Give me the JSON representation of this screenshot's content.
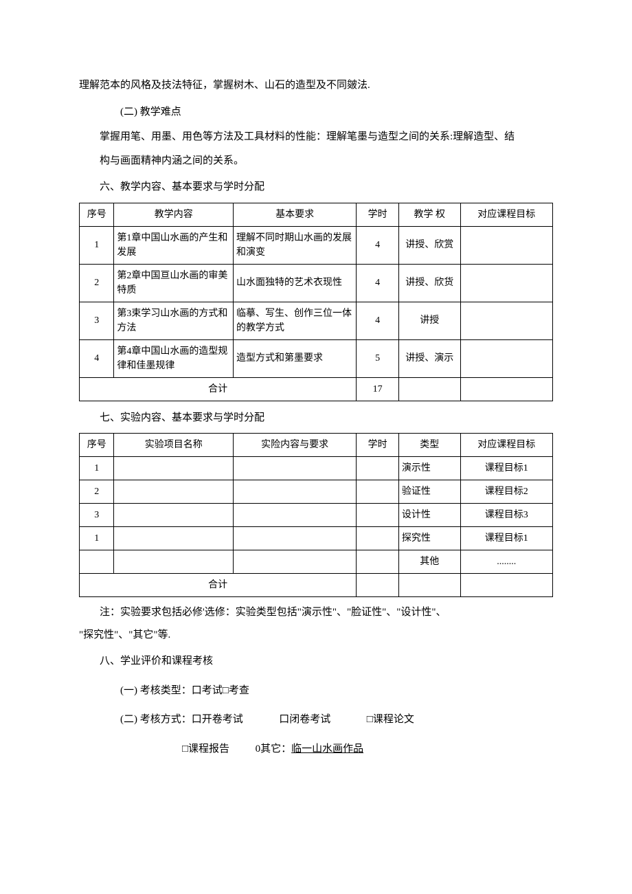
{
  "intro": {
    "line1": "理解范本的风格及技法特征，掌握树木、山石的造型及不同皴法.",
    "sub1": "(二) 教学难点",
    "line2": "掌握用笔、用墨、用色等方法及工具材料的性能：理解笔墨与造型之间的关系:理解造型、结",
    "line3": "构与画面精神内涵之间的关系。"
  },
  "section6": {
    "heading": "六、教学内容、基本要求与学时分配",
    "table": {
      "headers": [
        "序号",
        "教学内容",
        "基本要求",
        "学时",
        "教学\n权",
        "对应课程目标"
      ],
      "rows": [
        {
          "seq": "1",
          "content": "第1章中国山水画的产生和发展",
          "req": "理解不同时期山水画的发展和演变",
          "hours": "4",
          "method": "讲授、欣赏",
          "target": ""
        },
        {
          "seq": "2",
          "content": "第2章中国亘山水画的审美特质",
          "req": "山水面独特的艺术衣现性",
          "hours": "4",
          "method": "讲授、欣货",
          "target": ""
        },
        {
          "seq": "3",
          "content": "第3束学习山水画的方式和方法",
          "req": "临摹、写生、创作三位一体的教学方式",
          "hours": "4",
          "method": "讲授",
          "target": ""
        },
        {
          "seq": "4",
          "content": "第4章中国山水画的造型规律和佳墨规律",
          "req": "造型方式和第墨要求",
          "hours": "5",
          "method": "讲授、演示",
          "target": ""
        }
      ],
      "total_label": "合计",
      "total_hours": "17"
    }
  },
  "section7": {
    "heading": "七、实验内容、基本要求与学时分配",
    "table": {
      "headers": [
        "序号",
        "实验项目名称",
        "实险内容与要求",
        "学时",
        "类型",
        "对应课程目标"
      ],
      "rows": [
        {
          "seq": "1",
          "name": "",
          "req": "",
          "hours": "",
          "type": "演示性",
          "target": "课程目标1"
        },
        {
          "seq": "2",
          "name": "",
          "req": "",
          "hours": "",
          "type": "验证性",
          "target": "课程目标2"
        },
        {
          "seq": "3",
          "name": "",
          "req": "",
          "hours": "",
          "type": "设计性",
          "target": "课程目标3"
        },
        {
          "seq": "1",
          "name": "",
          "req": "",
          "hours": "",
          "type": "探究性",
          "target": "课程目标1"
        },
        {
          "seq": "",
          "name": "",
          "req": "",
          "hours": "",
          "type": "其他",
          "target": "........"
        }
      ],
      "total_label": "合计"
    },
    "note1": "注：实验要求包括必修'选修：实验类型包括\"演示性\"、\"脸证性\"、\"设计性\"、",
    "note2": "\"探究性\"、\"其它\"等."
  },
  "section8": {
    "heading": "八、学业评价和课程考核",
    "line1_label": "(一) 考核类型：",
    "line1_opt1": "口考试",
    "line1_opt2": "□考查",
    "line2_label": "(二) 考核方式：",
    "line2_opt1": "口开卷考试",
    "line2_opt2": "口闭卷考试",
    "line2_opt3": "□课程论文",
    "line3_opt1": "□课程报告",
    "line3_opt2_prefix": "0其它：",
    "line3_opt2_underline": "临一山水画作品"
  }
}
